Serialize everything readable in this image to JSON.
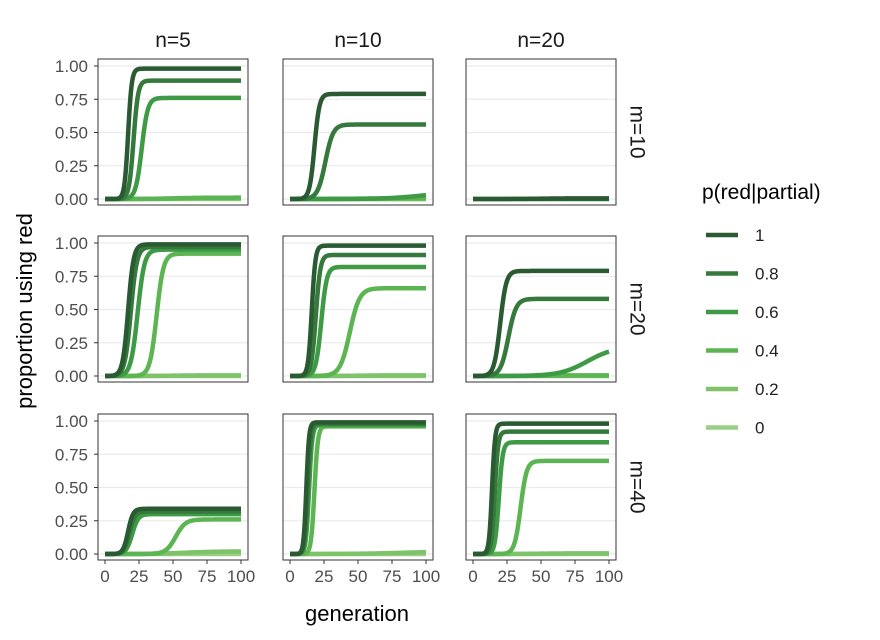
{
  "chart_data": {
    "type": "line",
    "xlabel": "generation",
    "ylabel": "proportion using red",
    "xlim": [
      0,
      100
    ],
    "ylim": [
      0,
      1
    ],
    "x_ticks": [
      0,
      25,
      50,
      75,
      100
    ],
    "y_ticks": [
      0,
      0.25,
      0.5,
      0.75,
      1
    ],
    "y_tick_labels": [
      "0.00",
      "0.25",
      "0.50",
      "0.75",
      "1.00"
    ],
    "x_tick_labels": [
      "0",
      "25",
      "50",
      "75",
      "100"
    ],
    "grid": true,
    "legend": {
      "title": "p(red|partial)",
      "position": "right",
      "entries": [
        {
          "label": "1",
          "color": "#2a5a32"
        },
        {
          "label": "0.8",
          "color": "#357a3c"
        },
        {
          "label": "0.6",
          "color": "#3f9a46"
        },
        {
          "label": "0.4",
          "color": "#5cb552"
        },
        {
          "label": "0.2",
          "color": "#7ec26a"
        },
        {
          "label": "0",
          "color": "#9bcf85"
        }
      ]
    },
    "columns": [
      "n=5",
      "n=10",
      "n=20"
    ],
    "rows": [
      "m=10",
      "m=20",
      "m=40"
    ],
    "panels": [
      {
        "row": "m=10",
        "col": "n=5",
        "series": [
          {
            "name": "1",
            "plateau": 0.98,
            "midpoint": 17,
            "rate": 0.75
          },
          {
            "name": "0.8",
            "plateau": 0.89,
            "midpoint": 21,
            "rate": 0.6
          },
          {
            "name": "0.6",
            "plateau": 0.76,
            "midpoint": 27,
            "rate": 0.45
          },
          {
            "name": "0.4",
            "plateau": 0.01,
            "midpoint": 50,
            "rate": 0.1
          },
          {
            "name": "0.2",
            "plateau": 0.005,
            "midpoint": 50,
            "rate": 0.1
          },
          {
            "name": "0",
            "plateau": 0.0,
            "midpoint": 50,
            "rate": 0.1
          }
        ]
      },
      {
        "row": "m=10",
        "col": "n=10",
        "series": [
          {
            "name": "1",
            "plateau": 0.79,
            "midpoint": 18,
            "rate": 0.55
          },
          {
            "name": "0.8",
            "plateau": 0.56,
            "midpoint": 26,
            "rate": 0.35
          },
          {
            "name": "0.6",
            "plateau": 0.05,
            "midpoint": 96,
            "rate": 0.08
          },
          {
            "name": "0.4",
            "plateau": 0.005,
            "midpoint": 50,
            "rate": 0.1
          },
          {
            "name": "0.2",
            "plateau": 0.0,
            "midpoint": 50,
            "rate": 0.1
          },
          {
            "name": "0",
            "plateau": 0.0,
            "midpoint": 50,
            "rate": 0.1
          }
        ]
      },
      {
        "row": "m=10",
        "col": "n=20",
        "series": [
          {
            "name": "1",
            "plateau": 0.005,
            "midpoint": 50,
            "rate": 0.1
          },
          {
            "name": "0.8",
            "plateau": 0.0,
            "midpoint": 50,
            "rate": 0.1
          }
        ]
      },
      {
        "row": "m=20",
        "col": "n=5",
        "series": [
          {
            "name": "1",
            "plateau": 0.99,
            "midpoint": 17,
            "rate": 0.5
          },
          {
            "name": "0.8",
            "plateau": 0.97,
            "midpoint": 19,
            "rate": 0.45
          },
          {
            "name": "0.6",
            "plateau": 0.95,
            "midpoint": 24,
            "rate": 0.4
          },
          {
            "name": "0.4",
            "plateau": 0.92,
            "midpoint": 38,
            "rate": 0.4
          },
          {
            "name": "0.2",
            "plateau": 0.005,
            "midpoint": 50,
            "rate": 0.1
          },
          {
            "name": "0",
            "plateau": 0.0,
            "midpoint": 50,
            "rate": 0.1
          }
        ]
      },
      {
        "row": "m=20",
        "col": "n=10",
        "series": [
          {
            "name": "1",
            "plateau": 0.98,
            "midpoint": 16,
            "rate": 0.75
          },
          {
            "name": "0.8",
            "plateau": 0.91,
            "midpoint": 19,
            "rate": 0.6
          },
          {
            "name": "0.6",
            "plateau": 0.82,
            "midpoint": 23,
            "rate": 0.5
          },
          {
            "name": "0.4",
            "plateau": 0.66,
            "midpoint": 44,
            "rate": 0.28
          },
          {
            "name": "0.2",
            "plateau": 0.005,
            "midpoint": 50,
            "rate": 0.1
          },
          {
            "name": "0",
            "plateau": 0.0,
            "midpoint": 50,
            "rate": 0.1
          }
        ]
      },
      {
        "row": "m=20",
        "col": "n=20",
        "series": [
          {
            "name": "1",
            "plateau": 0.79,
            "midpoint": 20,
            "rate": 0.45
          },
          {
            "name": "0.8",
            "plateau": 0.58,
            "midpoint": 26,
            "rate": 0.35
          },
          {
            "name": "0.6",
            "plateau": 0.22,
            "midpoint": 84,
            "rate": 0.1
          },
          {
            "name": "0.4",
            "plateau": 0.005,
            "midpoint": 50,
            "rate": 0.1
          },
          {
            "name": "0.2",
            "plateau": 0.0,
            "midpoint": 50,
            "rate": 0.1
          }
        ]
      },
      {
        "row": "m=40",
        "col": "n=5",
        "series": [
          {
            "name": "1",
            "plateau": 0.34,
            "midpoint": 17,
            "rate": 0.55
          },
          {
            "name": "0.8",
            "plateau": 0.32,
            "midpoint": 18,
            "rate": 0.5
          },
          {
            "name": "0.6",
            "plateau": 0.3,
            "midpoint": 20,
            "rate": 0.45
          },
          {
            "name": "0.4",
            "plateau": 0.26,
            "midpoint": 52,
            "rate": 0.28
          },
          {
            "name": "0.2",
            "plateau": 0.02,
            "midpoint": 60,
            "rate": 0.08
          },
          {
            "name": "0",
            "plateau": 0.0,
            "midpoint": 50,
            "rate": 0.1
          }
        ]
      },
      {
        "row": "m=40",
        "col": "n=10",
        "series": [
          {
            "name": "1",
            "plateau": 0.99,
            "midpoint": 12,
            "rate": 1.0
          },
          {
            "name": "0.8",
            "plateau": 0.98,
            "midpoint": 13,
            "rate": 0.9
          },
          {
            "name": "0.6",
            "plateau": 0.97,
            "midpoint": 14,
            "rate": 0.85
          },
          {
            "name": "0.4",
            "plateau": 0.96,
            "midpoint": 18,
            "rate": 0.8
          },
          {
            "name": "0.2",
            "plateau": 0.02,
            "midpoint": 85,
            "rate": 0.06
          },
          {
            "name": "0",
            "plateau": 0.0,
            "midpoint": 50,
            "rate": 0.1
          }
        ]
      },
      {
        "row": "m=40",
        "col": "n=20",
        "series": [
          {
            "name": "1",
            "plateau": 0.98,
            "midpoint": 14,
            "rate": 0.9
          },
          {
            "name": "0.8",
            "plateau": 0.92,
            "midpoint": 16,
            "rate": 0.8
          },
          {
            "name": "0.6",
            "plateau": 0.84,
            "midpoint": 19,
            "rate": 0.7
          },
          {
            "name": "0.4",
            "plateau": 0.7,
            "midpoint": 35,
            "rate": 0.45
          },
          {
            "name": "0.2",
            "plateau": 0.005,
            "midpoint": 50,
            "rate": 0.1
          },
          {
            "name": "0",
            "plateau": 0.0,
            "midpoint": 50,
            "rate": 0.1
          }
        ]
      }
    ]
  }
}
